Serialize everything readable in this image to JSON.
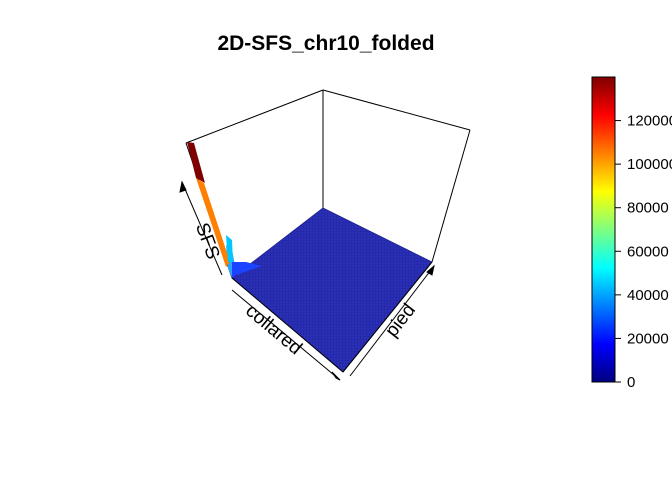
{
  "chart_data": {
    "type": "surface",
    "title": "2D-SFS_chr10_folded",
    "xlabel": "collared",
    "ylabel": "pied",
    "zlabel": "SFS",
    "colormap": "jet",
    "colorbar": {
      "min": 0,
      "max": 140000,
      "ticks": [
        0,
        20000,
        40000,
        60000,
        80000,
        100000,
        120000
      ],
      "tick_labels": [
        "0",
        "20000",
        "40000",
        "60000",
        "80000",
        "100000",
        "120000"
      ],
      "colors": [
        "#00007f",
        "#0000ff",
        "#007fff",
        "#00ffff",
        "#7fff7f",
        "#ffff00",
        "#ff7f00",
        "#ff0000",
        "#7f0000"
      ]
    },
    "surface_description_values": {
      "peak_value": 140000,
      "second_value": 100000,
      "third_value": 40000,
      "baseline_value": 2000
    }
  }
}
